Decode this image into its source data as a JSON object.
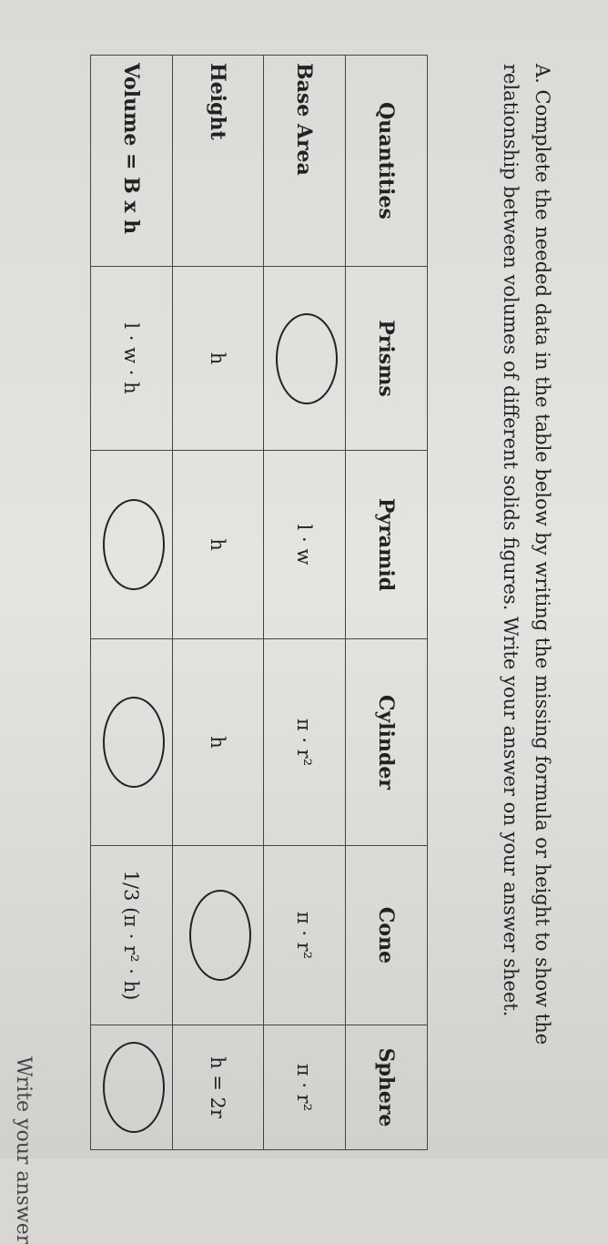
{
  "instruction": "A. Complete the needed data in the table below by writing the missing formula or height to show the relationship between volumes of different solids figures. Write your answer on your answer sheet.",
  "table": {
    "header": [
      "Quantities",
      "Prisms",
      "Pyramid",
      "Cylinder",
      "Cone",
      "Sphere"
    ],
    "rows": [
      [
        "Base Area",
        null,
        "l · w",
        "π · r²",
        "π · r²",
        "π · r²"
      ],
      [
        "Height",
        "h",
        "h",
        "h",
        null,
        "h = 2r"
      ],
      [
        "Volume = B x h",
        "l · w · h",
        null,
        null,
        "1/3 (π · r² · h)",
        null
      ]
    ]
  },
  "footer": "Write your answer"
}
